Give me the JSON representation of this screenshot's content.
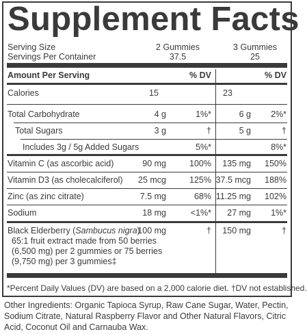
{
  "title": "Supplement Facts",
  "serving": {
    "size_label": "Serving Size",
    "per_container_label": "Servings Per Container",
    "col1_size": "2 Gummies",
    "col1_container": "37.5",
    "col2_size": "3 Gummies",
    "col2_container": "25"
  },
  "header": {
    "amount": "Amount Per Serving",
    "dv1": "% DV",
    "dv2": "% DV"
  },
  "rows": [
    {
      "name": "Calories",
      "a1": "15",
      "d1": "",
      "a2": "23",
      "d2": ""
    },
    {
      "name": "Total Carbohydrate",
      "a1": "4 g",
      "d1": "1%*",
      "a2": "6 g",
      "d2": "2%*"
    },
    {
      "name": "Total Sugars",
      "a1": "3 g",
      "d1": "†",
      "a2": "5 g",
      "d2": "†"
    },
    {
      "name": "Includes 3g / 5g Added Sugars",
      "a1": "",
      "d1": "5%*",
      "a2": "",
      "d2": "8%*"
    },
    {
      "name": "Vitamin C (as ascorbic acid)",
      "a1": "90 mg",
      "d1": "100%",
      "a2": "135 mg",
      "d2": "150%"
    },
    {
      "name": "Vitamin D3 (as cholecalciferol)",
      "a1": "25 mcg",
      "d1": "125%",
      "a2": "37.5 mcg",
      "d2": "188%"
    },
    {
      "name": "Zinc (as zinc citrate)",
      "a1": "7.5 mg",
      "d1": "68%",
      "a2": "11.25 mg",
      "d2": "102%"
    },
    {
      "name": "Sodium",
      "a1": "18 mg",
      "d1": "<1%*",
      "a2": "27 mg",
      "d2": "1%*"
    }
  ],
  "elderberry": {
    "name_prefix": "Black Elderberry (",
    "name_italic": "Sambucus nigra",
    "name_suffix": ")",
    "line2": "65:1 fruit extract made from 50 berries",
    "line3": "(6,500 mg) per 2 gummies or 75 berries",
    "line4": "(9,750 mg) per 3 gummies‡",
    "a1": "100 mg",
    "d1": "†",
    "a2": "150 mg",
    "d2": "†"
  },
  "footnote": "*Percent Daily Values (DV) are based on a 2,000 calorie diet. †DV not established.",
  "other_ingredients": "Other Ingredients: Organic Tapioca Syrup, Raw Cane Sugar, Water, Pectin, Sodium Citrate, Natural Raspberry Flavor and Other Natural Flavors, Citric Acid, Coconut Oil and Carnauba Wax."
}
